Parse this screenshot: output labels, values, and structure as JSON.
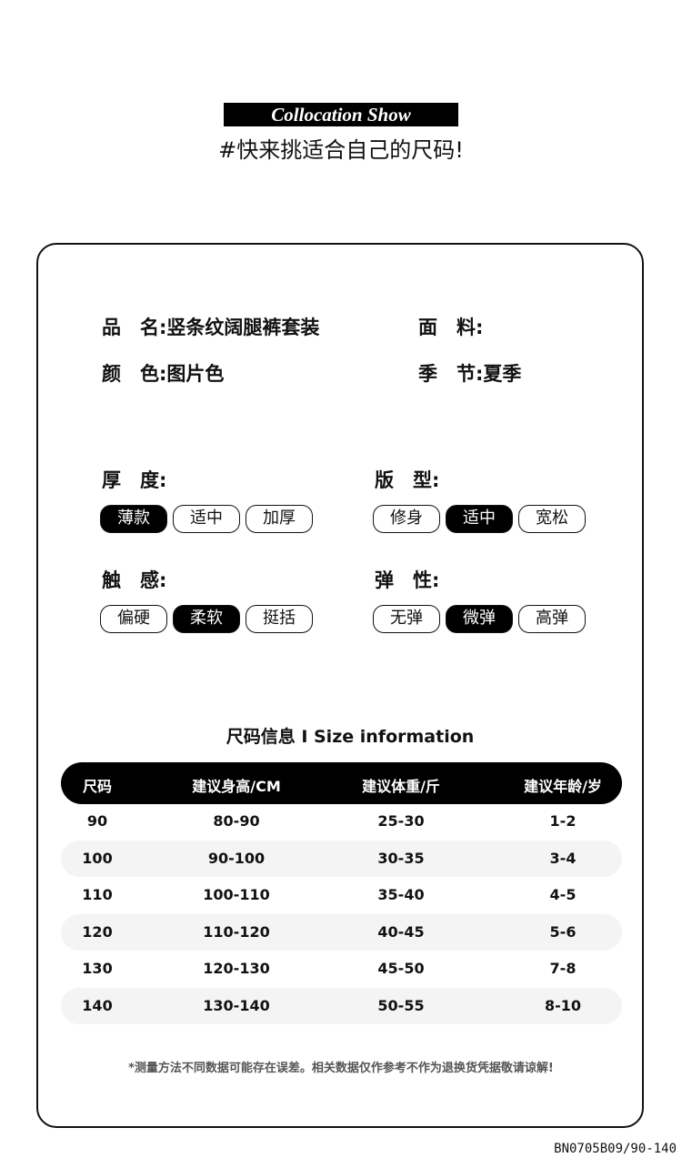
{
  "header": {
    "banner": "Collocation Show",
    "subtitle": "#快来挑适合自己的尺码!"
  },
  "info": {
    "name_label": "品　名:",
    "name_value": "竖条纹阔腿裤套装",
    "fabric_label": "面　料:",
    "fabric_value": "",
    "color_label": "颜　色:",
    "color_value": "图片色",
    "season_label": "季　节:",
    "season_value": "夏季"
  },
  "attributes": [
    {
      "label": "厚　度:",
      "options": [
        "薄款",
        "适中",
        "加厚"
      ],
      "selected": "薄款"
    },
    {
      "label": "版　型:",
      "options": [
        "修身",
        "适中",
        "宽松"
      ],
      "selected": "适中"
    },
    {
      "label": "触　感:",
      "options": [
        "偏硬",
        "柔软",
        "挺括"
      ],
      "selected": "柔软"
    },
    {
      "label": "弹　性:",
      "options": [
        "无弹",
        "微弹",
        "高弹"
      ],
      "selected": "微弹"
    }
  ],
  "size_table": {
    "title": "尺码信息 I Size information",
    "headers": [
      "尺码",
      "建议身高/CM",
      "建议体重/斤",
      "建议年龄/岁"
    ],
    "rows": [
      [
        "90",
        "80-90",
        "25-30",
        "1-2"
      ],
      [
        "100",
        "90-100",
        "30-35",
        "3-4"
      ],
      [
        "110",
        "100-110",
        "35-40",
        "4-5"
      ],
      [
        "120",
        "110-120",
        "40-45",
        "5-6"
      ],
      [
        "130",
        "120-130",
        "45-50",
        "7-8"
      ],
      [
        "140",
        "130-140",
        "50-55",
        "8-10"
      ]
    ]
  },
  "note": "*测量方法不同数据可能存在误差。相关数据仅作参考不作为退换货凭据敬请谅解!",
  "product_code": "BN0705B09/90-140"
}
